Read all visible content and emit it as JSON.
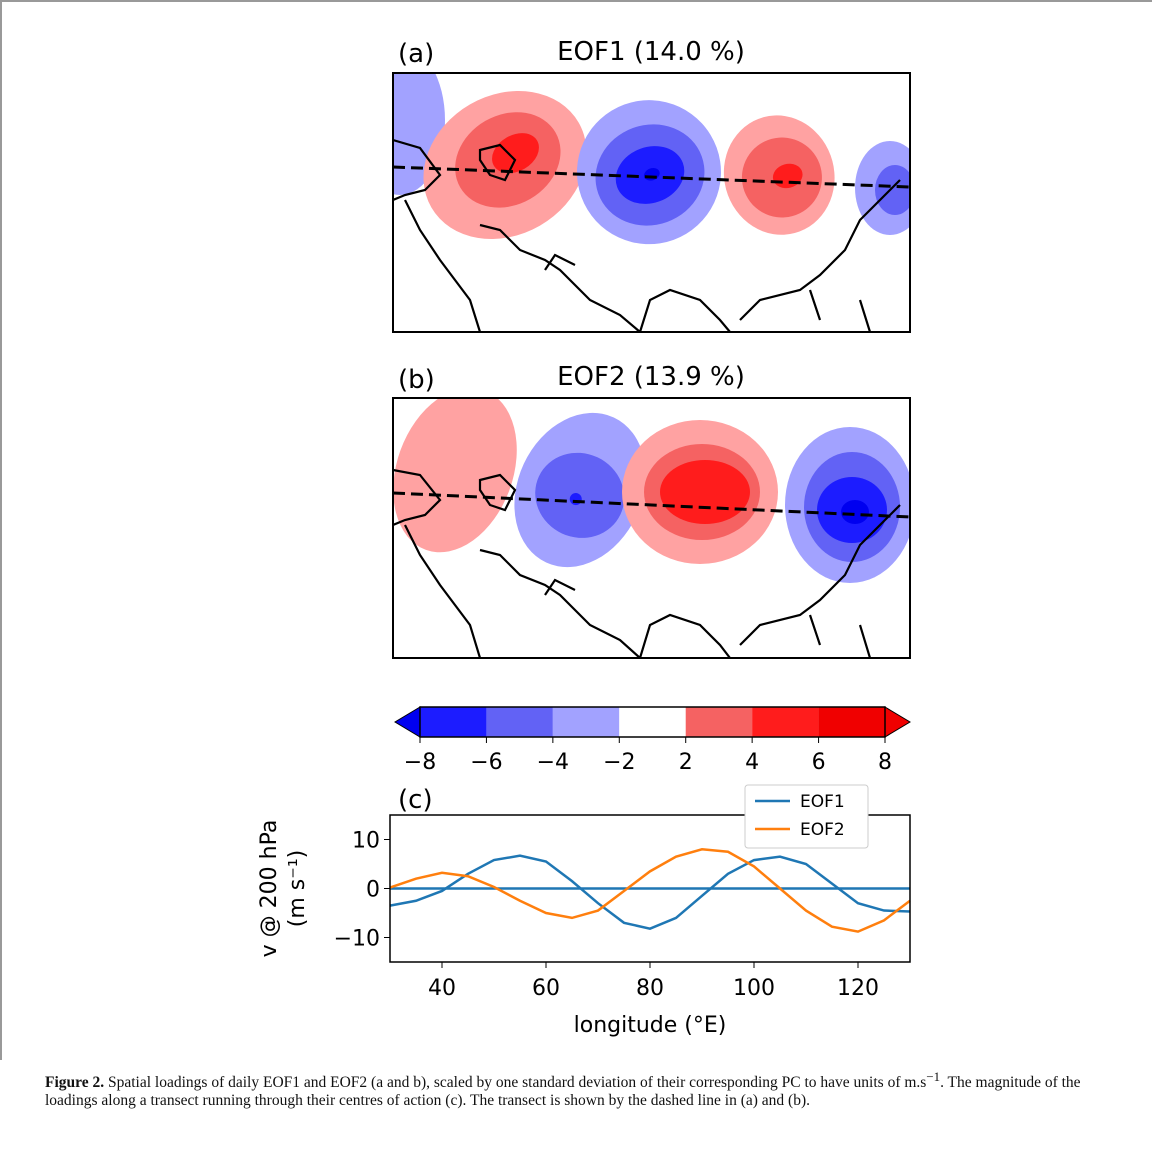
{
  "chart_data": [
    {
      "type": "map",
      "panel": "(a)",
      "title": "EOF1 (14.0 %)"
    },
    {
      "type": "map",
      "panel": "(b)",
      "title": "EOF2 (13.9 %)"
    },
    {
      "type": "colorbar",
      "ticks": [
        {
          "value": -8,
          "label": "−8"
        },
        {
          "value": -6,
          "label": "−6"
        },
        {
          "value": -4,
          "label": "−4"
        },
        {
          "value": -2,
          "label": "−2"
        },
        2,
        4,
        6,
        8
      ],
      "colors": [
        "#0000f0",
        "#1c1cff",
        "#6262f5",
        "#a2a2ff",
        "#ffffff",
        "#ffa2a2",
        "#f56262",
        "#ff1c1c",
        "#f00000"
      ]
    },
    {
      "type": "line",
      "panel": "(c)",
      "xlabel": "longitude (°E)",
      "ylabel": [
        "v @ 200 hPa",
        "(m s⁻¹)"
      ],
      "x": [
        30,
        35,
        40,
        45,
        50,
        55,
        60,
        65,
        70,
        75,
        80,
        85,
        90,
        95,
        100,
        105,
        110,
        115,
        120,
        125,
        130
      ],
      "series": [
        {
          "name": "EOF1",
          "color": "#1f77b4",
          "values": [
            -3.5,
            -2.5,
            -0.5,
            3,
            5.8,
            6.7,
            5.5,
            1.5,
            -3,
            -7,
            -8.2,
            -6,
            -1.5,
            3,
            5.8,
            6.5,
            5,
            1,
            -3,
            -4.5,
            -4.7
          ]
        },
        {
          "name": "EOF2",
          "color": "#ff7f0e",
          "values": [
            0.2,
            2,
            3.2,
            2.5,
            0.3,
            -2.5,
            -5,
            -6,
            -4.5,
            -0.5,
            3.5,
            6.5,
            8,
            7.5,
            4.5,
            0,
            -4.5,
            -7.8,
            -8.8,
            -6.5,
            -2.5
          ]
        }
      ],
      "zero_line": 0,
      "xlim": [
        30,
        130
      ],
      "xticks": [
        40,
        60,
        80,
        100,
        120
      ],
      "ylim": [
        -15,
        15
      ],
      "yticks": [
        {
          "value": -10,
          "label": "−10"
        },
        0,
        10
      ],
      "legend": "upper right"
    }
  ],
  "caption": {
    "label": "Figure 2.",
    "text": "Spatial loadings of daily EOF1 and EOF2 (a and b), scaled by one standard deviation of their corresponding PC to have units of m.s",
    "superscript": "−1",
    "text2": ". The magnitude of the loadings along a transect running through their centres of action (c). The transect is shown by the dashed line in (a) and (b)."
  }
}
